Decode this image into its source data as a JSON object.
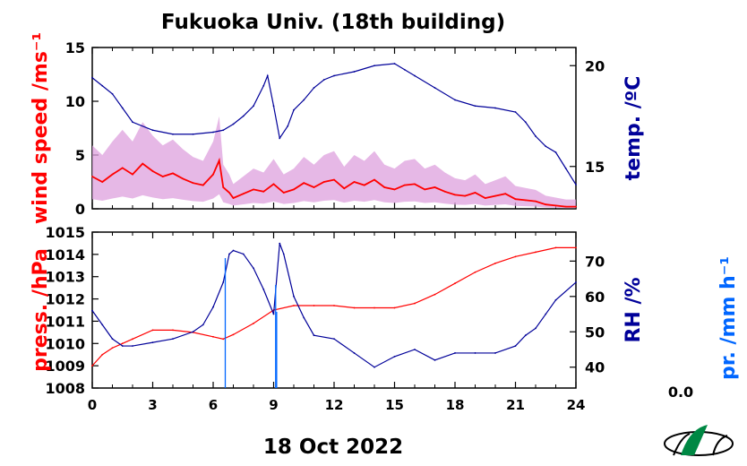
{
  "title": "Fukuoka Univ. (18th building)",
  "xlabel": "18 Oct 2022",
  "rain_value": "0.0",
  "colors": {
    "wind": "#ff0000",
    "wind_gust": "#dda0dd",
    "temp": "#000099",
    "press": "#ff0000",
    "rh": "#000099",
    "rain": "#0066ff",
    "logo": "#008844"
  },
  "chart_data": [
    {
      "type": "line",
      "panel": "top",
      "xlim": [
        0,
        24
      ],
      "xticks": [
        "0",
        "3",
        "6",
        "9",
        "12",
        "15",
        "18",
        "21",
        "24"
      ],
      "y_left": {
        "label": "wind speed /ms⁻¹",
        "lim": [
          0,
          15
        ],
        "ticks": [
          "0",
          "5",
          "10",
          "15"
        ]
      },
      "y_right": {
        "label": "temp. /ºC",
        "lim": [
          12.9,
          20.9
        ],
        "ticks": [
          "15",
          "20"
        ]
      },
      "series": [
        {
          "axis": "left",
          "color": "#ff0000",
          "x": [
            0,
            0.5,
            1,
            1.5,
            2,
            2.5,
            3,
            3.5,
            4,
            4.5,
            5,
            5.5,
            6,
            6.3,
            6.5,
            6.8,
            7,
            7.5,
            8,
            8.5,
            9,
            9.5,
            10,
            10.5,
            11,
            11.5,
            12,
            12.5,
            13,
            13.5,
            14,
            14.5,
            15,
            15.5,
            16,
            16.5,
            17,
            17.5,
            18,
            18.5,
            19,
            19.5,
            20,
            20.5,
            21,
            21.5,
            22,
            22.5,
            23,
            23.5,
            24
          ],
          "y": [
            3.0,
            2.5,
            3.2,
            3.8,
            3.2,
            4.2,
            3.5,
            3.0,
            3.3,
            2.8,
            2.4,
            2.2,
            3.2,
            4.5,
            2.0,
            1.5,
            1.0,
            1.4,
            1.8,
            1.6,
            2.3,
            1.5,
            1.8,
            2.4,
            2.0,
            2.5,
            2.7,
            1.9,
            2.5,
            2.2,
            2.7,
            2.0,
            1.8,
            2.2,
            2.3,
            1.8,
            2.0,
            1.6,
            1.3,
            1.2,
            1.5,
            1.0,
            1.2,
            1.4,
            0.9,
            0.8,
            0.7,
            0.4,
            0.3,
            0.2,
            0.2
          ]
        },
        {
          "axis": "right",
          "color": "#000099",
          "x": [
            0,
            0.5,
            1,
            1.5,
            2,
            3,
            4,
            5,
            6,
            6.5,
            7,
            7.5,
            8,
            8.5,
            8.7,
            9,
            9.3,
            9.7,
            10,
            10.5,
            11,
            11.5,
            12,
            13,
            14,
            15,
            15.5,
            16,
            17,
            18,
            19,
            20,
            21,
            21.5,
            22,
            22.5,
            23,
            23.5,
            24
          ],
          "y": [
            19.4,
            19.0,
            18.6,
            17.9,
            17.2,
            16.8,
            16.6,
            16.6,
            16.7,
            16.8,
            17.1,
            17.5,
            18.0,
            19.0,
            19.5,
            18.0,
            16.4,
            17.0,
            17.8,
            18.3,
            18.9,
            19.3,
            19.5,
            19.7,
            20.0,
            20.1,
            19.8,
            19.5,
            18.9,
            18.3,
            18.0,
            17.9,
            17.7,
            17.2,
            16.5,
            16.0,
            15.7,
            14.9,
            14.1
          ]
        }
      ]
    },
    {
      "type": "line",
      "panel": "bottom",
      "xlim": [
        0,
        24
      ],
      "xticks": [
        "0",
        "3",
        "6",
        "9",
        "12",
        "15",
        "18",
        "21",
        "24"
      ],
      "y_left": {
        "label": "press. /hPa",
        "lim": [
          1008,
          1015
        ],
        "ticks": [
          "1008",
          "1009",
          "1010",
          "1011",
          "1012",
          "1013",
          "1014",
          "1015"
        ]
      },
      "y_right": {
        "label": "RH /%",
        "lim": [
          34.1,
          78.2
        ],
        "ticks": [
          "40",
          "50",
          "60",
          "70"
        ]
      },
      "y_rain": {
        "label": "pr. /mm h⁻¹"
      },
      "series": [
        {
          "axis": "left",
          "color": "#ff0000",
          "x": [
            0,
            0.5,
            1,
            1.5,
            2,
            3,
            4,
            5,
            6,
            6.5,
            7,
            8,
            9,
            10,
            11,
            12,
            13,
            14,
            15,
            16,
            17,
            18,
            19,
            20,
            21,
            22,
            23,
            24
          ],
          "y": [
            1009.0,
            1009.5,
            1009.8,
            1010.0,
            1010.2,
            1010.6,
            1010.6,
            1010.5,
            1010.3,
            1010.2,
            1010.4,
            1010.9,
            1011.5,
            1011.7,
            1011.7,
            1011.7,
            1011.6,
            1011.6,
            1011.6,
            1011.8,
            1012.2,
            1012.7,
            1013.2,
            1013.6,
            1013.9,
            1014.1,
            1014.3,
            1014.3
          ]
        },
        {
          "axis": "right",
          "color": "#000099",
          "x": [
            0,
            0.5,
            1,
            1.5,
            2,
            3,
            4,
            5,
            5.5,
            6,
            6.5,
            6.8,
            7,
            7.5,
            8,
            8.5,
            9,
            9.3,
            9.5,
            10,
            10.5,
            11,
            12,
            13,
            14,
            15,
            16,
            17,
            18,
            19,
            20,
            21,
            21.5,
            22,
            22.5,
            23,
            24
          ],
          "y": [
            56.0,
            52.0,
            48.0,
            46.0,
            46.0,
            47.0,
            48.0,
            50.0,
            52.0,
            57.0,
            64.0,
            72.0,
            73.0,
            72.0,
            68.0,
            62.0,
            55.0,
            75.0,
            72.0,
            60.0,
            54.0,
            49.0,
            48.0,
            44.0,
            40.0,
            43.0,
            45.0,
            42.0,
            44.0,
            44.0,
            44.0,
            46.0,
            49.0,
            51.0,
            55.0,
            59.0,
            64.0
          ]
        },
        {
          "axis": "rain",
          "color": "#0066ff",
          "x": [
            6.6,
            9.1,
            9.15
          ],
          "y": [
            0.1,
            0.1,
            0.1
          ]
        }
      ]
    }
  ]
}
